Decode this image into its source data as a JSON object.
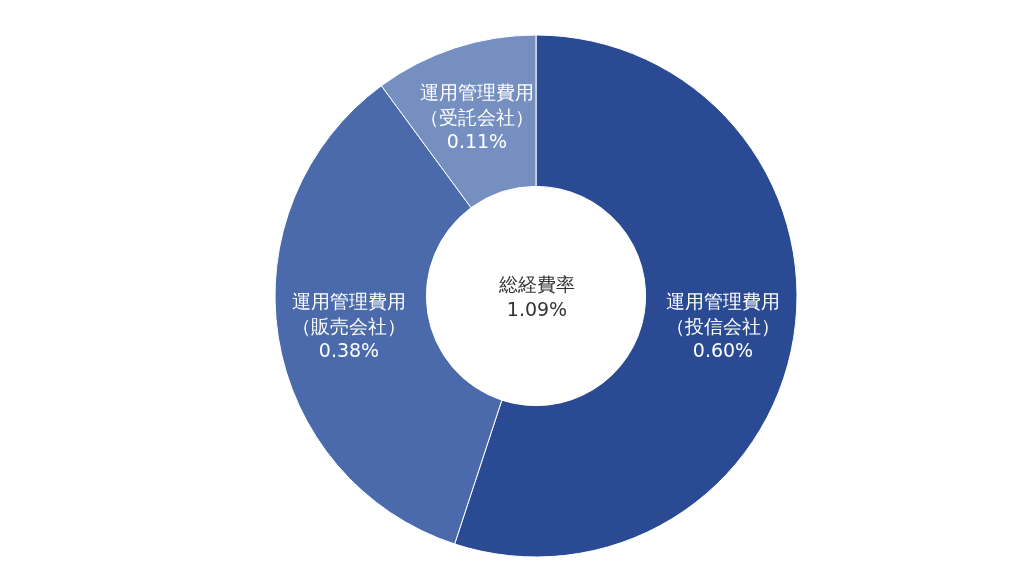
{
  "chart_data": {
    "type": "donut",
    "categories": [
      "運用管理費用（投信会社）",
      "運用管理費用（販売会社）",
      "運用管理費用（受託会社）"
    ],
    "values": [
      0.6,
      0.38,
      0.11
    ],
    "value_labels": [
      "0.60%",
      "0.38%",
      "0.11%"
    ],
    "colors": [
      "#2b4a94",
      "#4a6aab",
      "#7590c0"
    ],
    "annotations": [
      "総経費率\n1.09%"
    ],
    "legend": false
  }
}
